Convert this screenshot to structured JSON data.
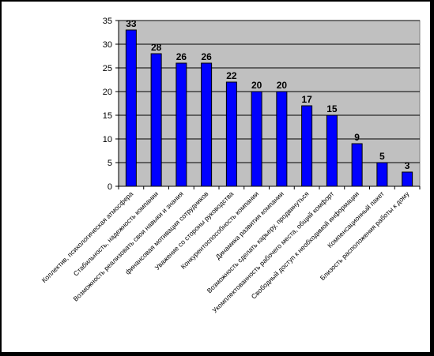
{
  "chart_data": {
    "type": "bar",
    "categories": [
      "Коллектив, психологическая атмосфера",
      "Стабильность, надежность компании",
      "Возможность реализовать свои навыки и знания",
      "финансовая мотивация сотрудников",
      "Уважение со стороны руководства",
      "Конкурентоспособность компании",
      "Динамика развития компании",
      "Возможность сделать карьеру, продвинуться",
      "Укомплектованность рабочего места, общий комфорт",
      "Свободный доступ к необходимой информации",
      "Компенсационный пакет",
      "Близость расположения работы к дому"
    ],
    "values": [
      33,
      28,
      26,
      26,
      22,
      20,
      20,
      17,
      15,
      9,
      5,
      3
    ],
    "data_labels": [
      "33",
      "28",
      "26",
      "26",
      "22",
      "20",
      "20",
      "17",
      "15",
      "9",
      "5",
      "3"
    ],
    "yticks": [
      "0",
      "5",
      "10",
      "15",
      "20",
      "25",
      "30",
      "35"
    ],
    "ylim": [
      0,
      35
    ],
    "grid": true,
    "legend": "none",
    "title": "",
    "xlabel": "",
    "ylabel": "",
    "colors": {
      "bar_fill": "#0000ff",
      "bar_stroke": "#000000",
      "plot_background": "#c0c0c0",
      "gridline": "#000000"
    }
  }
}
